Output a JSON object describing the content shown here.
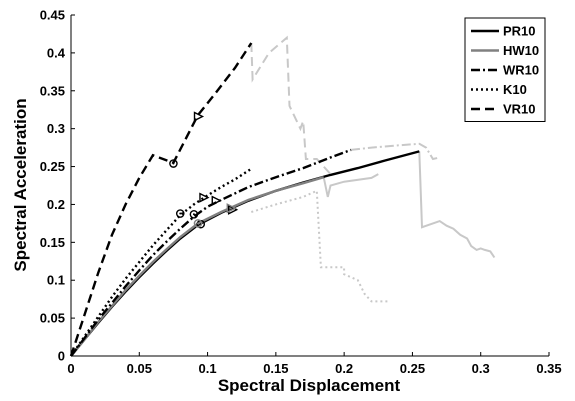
{
  "chart_data": {
    "type": "line",
    "title": "",
    "xlabel": "Spectral Displacement",
    "ylabel": "Spectral Acceleration",
    "xlim": [
      0,
      0.35
    ],
    "ylim": [
      0,
      0.45
    ],
    "x_ticks": [
      0,
      0.05,
      0.1,
      0.15,
      0.2,
      0.25,
      0.3,
      0.35
    ],
    "y_ticks": [
      0,
      0.05,
      0.1,
      0.15,
      0.2,
      0.25,
      0.3,
      0.35,
      0.4,
      0.45
    ],
    "x_tick_labels": [
      "0",
      "0.05",
      "0.1",
      "0.15",
      "0.2",
      "0.25",
      "0.3",
      "0.35"
    ],
    "y_tick_labels": [
      "0",
      "0.05",
      "0.1",
      "0.15",
      "0.2",
      "0.25",
      "0.3",
      "0.35",
      "0.4",
      "0.45"
    ],
    "grid": false,
    "legend_position": "top-right",
    "series": [
      {
        "name": "PR10",
        "color": "#000000",
        "dash": "solid",
        "points": [
          [
            0,
            0
          ],
          [
            0.01,
            0.022
          ],
          [
            0.02,
            0.044
          ],
          [
            0.03,
            0.065
          ],
          [
            0.04,
            0.085
          ],
          [
            0.05,
            0.104
          ],
          [
            0.06,
            0.122
          ],
          [
            0.07,
            0.139
          ],
          [
            0.08,
            0.155
          ],
          [
            0.093,
            0.173
          ],
          [
            0.11,
            0.189
          ],
          [
            0.13,
            0.205
          ],
          [
            0.15,
            0.218
          ],
          [
            0.17,
            0.229
          ],
          [
            0.19,
            0.239
          ],
          [
            0.21,
            0.248
          ],
          [
            0.23,
            0.258
          ],
          [
            0.255,
            0.27
          ]
        ],
        "markers": [
          {
            "x": 0.095,
            "y": 0.174,
            "shape": "circle"
          },
          {
            "x": 0.118,
            "y": 0.193,
            "shape": "triangle"
          }
        ],
        "post_failure": [
          [
            0.255,
            0.27
          ],
          [
            0.257,
            0.17
          ],
          [
            0.27,
            0.178
          ],
          [
            0.275,
            0.172
          ],
          [
            0.28,
            0.168
          ],
          [
            0.285,
            0.16
          ],
          [
            0.29,
            0.155
          ],
          [
            0.293,
            0.145
          ],
          [
            0.297,
            0.14
          ],
          [
            0.3,
            0.142
          ],
          [
            0.303,
            0.14
          ],
          [
            0.307,
            0.138
          ],
          [
            0.31,
            0.13
          ]
        ]
      },
      {
        "name": "HW10",
        "color": "#808080",
        "dash": "solid",
        "points": [
          [
            0,
            0
          ],
          [
            0.01,
            0.022
          ],
          [
            0.02,
            0.045
          ],
          [
            0.03,
            0.066
          ],
          [
            0.04,
            0.087
          ],
          [
            0.05,
            0.106
          ],
          [
            0.06,
            0.124
          ],
          [
            0.07,
            0.141
          ],
          [
            0.08,
            0.157
          ],
          [
            0.093,
            0.175
          ],
          [
            0.11,
            0.19
          ],
          [
            0.13,
            0.206
          ],
          [
            0.15,
            0.218
          ],
          [
            0.17,
            0.228
          ],
          [
            0.185,
            0.236
          ]
        ],
        "markers": [
          {
            "x": 0.093,
            "y": 0.175,
            "shape": "circle"
          },
          {
            "x": 0.117,
            "y": 0.195,
            "shape": "triangle"
          }
        ],
        "post_failure": [
          [
            0.185,
            0.236
          ],
          [
            0.188,
            0.21
          ],
          [
            0.19,
            0.225
          ],
          [
            0.2,
            0.23
          ],
          [
            0.22,
            0.235
          ],
          [
            0.225,
            0.24
          ]
        ]
      },
      {
        "name": "WR10",
        "color": "#000000",
        "dash": "dashdot",
        "points": [
          [
            0,
            0
          ],
          [
            0.01,
            0.024
          ],
          [
            0.02,
            0.048
          ],
          [
            0.03,
            0.07
          ],
          [
            0.04,
            0.092
          ],
          [
            0.05,
            0.113
          ],
          [
            0.06,
            0.133
          ],
          [
            0.07,
            0.151
          ],
          [
            0.08,
            0.168
          ],
          [
            0.09,
            0.184
          ],
          [
            0.1,
            0.197
          ],
          [
            0.11,
            0.206
          ],
          [
            0.13,
            0.223
          ],
          [
            0.15,
            0.236
          ],
          [
            0.17,
            0.248
          ],
          [
            0.19,
            0.262
          ],
          [
            0.205,
            0.272
          ]
        ],
        "markers": [
          {
            "x": 0.09,
            "y": 0.187,
            "shape": "circle"
          },
          {
            "x": 0.106,
            "y": 0.205,
            "shape": "triangle"
          }
        ],
        "post_failure": [
          [
            0.205,
            0.272
          ],
          [
            0.22,
            0.275
          ],
          [
            0.24,
            0.278
          ],
          [
            0.255,
            0.28
          ],
          [
            0.26,
            0.275
          ],
          [
            0.265,
            0.26
          ],
          [
            0.27,
            0.262
          ]
        ]
      },
      {
        "name": "K10",
        "color": "#000000",
        "dash": "dotted",
        "points": [
          [
            0,
            0
          ],
          [
            0.01,
            0.026
          ],
          [
            0.02,
            0.052
          ],
          [
            0.03,
            0.078
          ],
          [
            0.04,
            0.102
          ],
          [
            0.05,
            0.124
          ],
          [
            0.06,
            0.146
          ],
          [
            0.07,
            0.166
          ],
          [
            0.08,
            0.186
          ],
          [
            0.09,
            0.2
          ],
          [
            0.1,
            0.212
          ],
          [
            0.11,
            0.223
          ],
          [
            0.12,
            0.233
          ],
          [
            0.132,
            0.247
          ]
        ],
        "markers": [
          {
            "x": 0.08,
            "y": 0.188,
            "shape": "circle"
          },
          {
            "x": 0.097,
            "y": 0.209,
            "shape": "triangle"
          }
        ],
        "post_failure": [
          [
            0.132,
            0.19
          ],
          [
            0.15,
            0.2
          ],
          [
            0.17,
            0.21
          ],
          [
            0.18,
            0.218
          ],
          [
            0.183,
            0.117
          ],
          [
            0.2,
            0.117
          ],
          [
            0.2,
            0.108
          ],
          [
            0.21,
            0.1
          ],
          [
            0.215,
            0.082
          ],
          [
            0.22,
            0.072
          ],
          [
            0.232,
            0.072
          ]
        ]
      },
      {
        "name": "VR10",
        "color": "#000000",
        "dash": "dashed",
        "points": [
          [
            0,
            0
          ],
          [
            0.01,
            0.055
          ],
          [
            0.02,
            0.11
          ],
          [
            0.03,
            0.16
          ],
          [
            0.04,
            0.2
          ],
          [
            0.05,
            0.235
          ],
          [
            0.06,
            0.265
          ],
          [
            0.075,
            0.255
          ],
          [
            0.085,
            0.29
          ],
          [
            0.093,
            0.318
          ],
          [
            0.105,
            0.345
          ],
          [
            0.12,
            0.38
          ],
          [
            0.132,
            0.413
          ]
        ],
        "markers": [
          {
            "x": 0.075,
            "y": 0.254,
            "shape": "circle"
          },
          {
            "x": 0.093,
            "y": 0.316,
            "shape": "triangle"
          }
        ],
        "post_failure": [
          [
            0.132,
            0.413
          ],
          [
            0.133,
            0.365
          ],
          [
            0.145,
            0.4
          ],
          [
            0.158,
            0.42
          ],
          [
            0.16,
            0.33
          ],
          [
            0.168,
            0.3
          ],
          [
            0.17,
            0.31
          ],
          [
            0.172,
            0.26
          ],
          [
            0.18,
            0.26
          ],
          [
            0.19,
            0.24
          ]
        ]
      }
    ]
  }
}
